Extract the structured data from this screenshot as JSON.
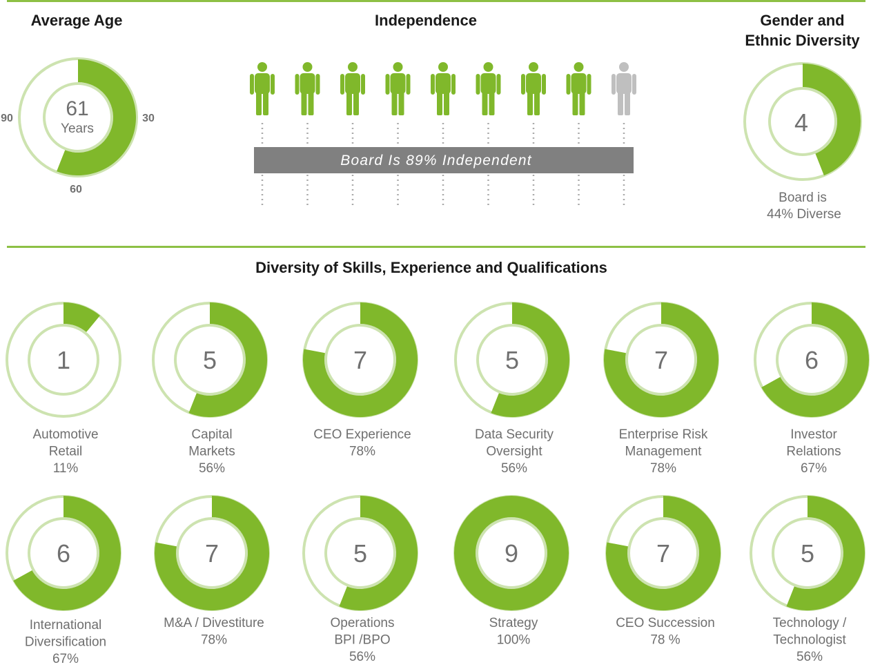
{
  "colors": {
    "green": "#80b82b",
    "light_green": "#cde3b0",
    "gray_person": "#bfbfbf",
    "banner": "#808080",
    "text": "#666666",
    "heading": "#1a1a1a"
  },
  "average_age": {
    "title": "Average Age",
    "value": "61",
    "unit": "Years",
    "fraction": 0.56,
    "scale_labels": {
      "right": "30",
      "bottom": "60",
      "left": "90"
    }
  },
  "independence": {
    "title": "Independence",
    "banner_text": "Board Is 89% Independent",
    "directors_total": 9,
    "directors_independent": 8,
    "person_icon": "person-icon"
  },
  "gender_diversity": {
    "title_line1": "Gender and",
    "title_line2": "Ethnic Diversity",
    "count": "4",
    "fraction": 0.44,
    "caption_line1": "Board is",
    "caption_line2": "44% Diverse"
  },
  "skills_section": {
    "title": "Diversity of Skills, Experience and Qualifications"
  },
  "chart_data": {
    "type": "pie",
    "title": "Diversity of Skills, Experience and Qualifications",
    "categories": [
      "Automotive Retail",
      "Capital Markets",
      "CEO Experience",
      "Data Security Oversight",
      "Enterprise Risk Management",
      "Investor Relations",
      "International Diversification",
      "M&A / Divestiture",
      "Operations BPI /BPO",
      "Strategy",
      "CEO Succession",
      "Technology / Technologist"
    ],
    "values": [
      11,
      56,
      78,
      56,
      78,
      67,
      67,
      78,
      56,
      100,
      78,
      56
    ],
    "items": [
      {
        "count": "1",
        "label": [
          "Automotive",
          "Retail"
        ],
        "pct_label": "11%",
        "pct": 11
      },
      {
        "count": "5",
        "label": [
          "Capital",
          "Markets"
        ],
        "pct_label": "56%",
        "pct": 56
      },
      {
        "count": "7",
        "label": [
          "CEO Experience"
        ],
        "pct_label": "78%",
        "pct": 78
      },
      {
        "count": "5",
        "label": [
          "Data Security",
          "Oversight"
        ],
        "pct_label": "56%",
        "pct": 56
      },
      {
        "count": "7",
        "label": [
          "Enterprise Risk",
          "Management"
        ],
        "pct_label": "78%",
        "pct": 78
      },
      {
        "count": "6",
        "label": [
          "Investor",
          "Relations"
        ],
        "pct_label": "67%",
        "pct": 67
      },
      {
        "count": "6",
        "label": [
          "International",
          "Diversification"
        ],
        "pct_label": "67%",
        "pct": 67
      },
      {
        "count": "7",
        "label": [
          "M&A / Divestiture"
        ],
        "pct_label": "78%",
        "pct": 78
      },
      {
        "count": "5",
        "label": [
          "Operations",
          "BPI /BPO"
        ],
        "pct_label": "56%",
        "pct": 56
      },
      {
        "count": "9",
        "label": [
          "Strategy"
        ],
        "pct_label": "100%",
        "pct": 100
      },
      {
        "count": "7",
        "label": [
          "CEO Succession"
        ],
        "pct_label": "78 %",
        "pct": 78
      },
      {
        "count": "5",
        "label": [
          "Technology /",
          "Technologist"
        ],
        "pct_label": "56%",
        "pct": 56
      }
    ]
  }
}
